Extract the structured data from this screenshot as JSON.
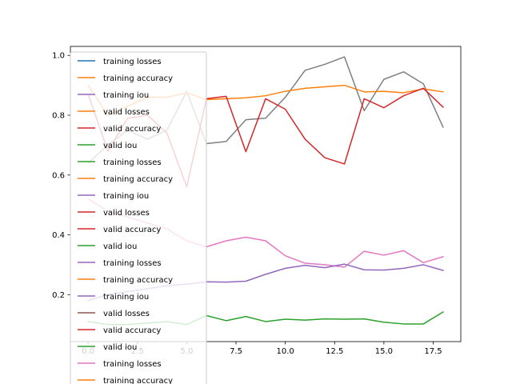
{
  "chart_data": {
    "type": "line",
    "title": "",
    "xlabel": "",
    "ylabel": "",
    "xlim": [
      -0.9,
      18.9
    ],
    "ylim": [
      0.043,
      1.03
    ],
    "xticks": [
      0.0,
      2.5,
      5.0,
      7.5,
      10.0,
      12.5,
      15.0,
      17.5
    ],
    "xtick_labels": [
      "0.0",
      "2.5",
      "5.0",
      "7.5",
      "10.0",
      "12.5",
      "15.0",
      "17.5"
    ],
    "yticks": [
      0.2,
      0.4,
      0.6,
      0.8,
      1.0
    ],
    "ytick_labels": [
      "0.2",
      "0.4",
      "0.6",
      "0.8",
      "1.0"
    ],
    "grid": false,
    "legend_position": "top-left",
    "legend": [
      {
        "label": "training losses",
        "color": "#1f77b4"
      },
      {
        "label": "training accuracy",
        "color": "#ff7f0e"
      },
      {
        "label": "training iou",
        "color": "#9467bd"
      },
      {
        "label": "valid losses",
        "color": "#ff7f0e"
      },
      {
        "label": "valid accuracy",
        "color": "#d62728"
      },
      {
        "label": "valid iou",
        "color": "#2ca02c"
      },
      {
        "label": "training losses",
        "color": "#2ca02c"
      },
      {
        "label": "training accuracy",
        "color": "#ff7f0e"
      },
      {
        "label": "training iou",
        "color": "#9467bd"
      },
      {
        "label": "valid losses",
        "color": "#d62728"
      },
      {
        "label": "valid accuracy",
        "color": "#d62728"
      },
      {
        "label": "valid iou",
        "color": "#2ca02c"
      },
      {
        "label": "training losses",
        "color": "#9467bd"
      },
      {
        "label": "training accuracy",
        "color": "#ff7f0e"
      },
      {
        "label": "training iou",
        "color": "#9467bd"
      },
      {
        "label": "valid losses",
        "color": "#8c564b"
      },
      {
        "label": "valid accuracy",
        "color": "#d62728"
      },
      {
        "label": "valid iou",
        "color": "#2ca02c"
      },
      {
        "label": "training losses",
        "color": "#e377c2"
      },
      {
        "label": "training accuracy",
        "color": "#ff7f0e"
      }
    ],
    "series": [
      {
        "name": "valid losses",
        "color": "#7f7f7f",
        "x": [
          0,
          1,
          2,
          3,
          4,
          5,
          6,
          7,
          8,
          9,
          10,
          11,
          12,
          13,
          14,
          15,
          16,
          17,
          18
        ],
        "y": [
          0.64,
          0.7,
          0.75,
          0.72,
          0.75,
          0.88,
          0.705,
          0.712,
          0.785,
          0.79,
          0.86,
          0.95,
          0.97,
          0.995,
          0.815,
          0.92,
          0.945,
          0.905,
          0.76
        ]
      },
      {
        "name": "training accuracy",
        "color": "#ff7f0e",
        "x": [
          0,
          1,
          2,
          3,
          4,
          5,
          6,
          7,
          8,
          9,
          10,
          11,
          12,
          13,
          14,
          15,
          16,
          17,
          18
        ],
        "y": [
          0.9,
          0.8,
          0.83,
          0.86,
          0.86,
          0.875,
          0.852,
          0.855,
          0.858,
          0.865,
          0.88,
          0.89,
          0.895,
          0.9,
          0.878,
          0.88,
          0.875,
          0.888,
          0.878
        ]
      },
      {
        "name": "valid accuracy",
        "color": "#d62728",
        "x": [
          0,
          1,
          2,
          3,
          4,
          5,
          6,
          7,
          8,
          9,
          10,
          11,
          12,
          13,
          14,
          15,
          16,
          17,
          18
        ],
        "y": [
          0.87,
          0.68,
          0.79,
          0.8,
          0.74,
          0.56,
          0.855,
          0.863,
          0.678,
          0.855,
          0.82,
          0.72,
          0.658,
          0.637,
          0.855,
          0.825,
          0.865,
          0.89,
          0.827
        ]
      },
      {
        "name": "training losses",
        "color": "#e377c2",
        "x": [
          0,
          1,
          2,
          3,
          4,
          5,
          6,
          7,
          8,
          9,
          10,
          11,
          12,
          13,
          14,
          15,
          16,
          17,
          18
        ],
        "y": [
          0.52,
          0.48,
          0.46,
          0.44,
          0.42,
          0.38,
          0.36,
          0.38,
          0.392,
          0.38,
          0.33,
          0.305,
          0.3,
          0.292,
          0.345,
          0.332,
          0.347,
          0.307,
          0.327
        ]
      },
      {
        "name": "training iou",
        "color": "#9467bd",
        "x": [
          0,
          1,
          2,
          3,
          4,
          5,
          6,
          7,
          8,
          9,
          10,
          11,
          12,
          13,
          14,
          15,
          16,
          17,
          18
        ],
        "y": [
          0.18,
          0.2,
          0.21,
          0.22,
          0.23,
          0.235,
          0.243,
          0.242,
          0.245,
          0.268,
          0.288,
          0.298,
          0.29,
          0.302,
          0.283,
          0.282,
          0.288,
          0.3,
          0.281
        ]
      },
      {
        "name": "valid iou",
        "color": "#2ca02c",
        "x": [
          0,
          1,
          2,
          3,
          4,
          5,
          6,
          7,
          8,
          9,
          10,
          11,
          12,
          13,
          14,
          15,
          16,
          17,
          18
        ],
        "y": [
          0.11,
          0.1,
          0.1,
          0.105,
          0.11,
          0.1,
          0.13,
          0.113,
          0.127,
          0.11,
          0.118,
          0.115,
          0.119,
          0.118,
          0.119,
          0.108,
          0.102,
          0.102,
          0.142
        ]
      }
    ]
  }
}
